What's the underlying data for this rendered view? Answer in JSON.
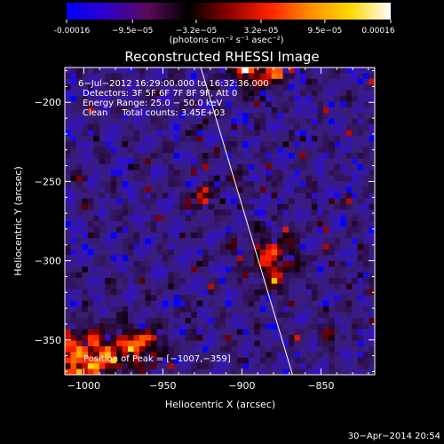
{
  "chart_data": {
    "type": "heatmap",
    "title": "Reconstructed RHESSI Image",
    "xlabel": "Heliocentric X (arcsec)",
    "ylabel": "Heliocentric Y (arcsec)",
    "xlim": [
      -1012,
      -816
    ],
    "ylim": [
      -372,
      -178
    ],
    "xticks": [
      -1000,
      -950,
      -900,
      -850
    ],
    "yticks": [
      -350,
      -300,
      -250,
      -200
    ],
    "xtick_labels": [
      "−1000",
      "−950",
      "−900",
      "−850"
    ],
    "ytick_labels": [
      "−350",
      "−300",
      "−250",
      "−200"
    ],
    "colorbar": {
      "min": -0.00016,
      "max": 0.00016,
      "ticks": [
        -0.00016,
        -9.5e-05,
        -3.2e-05,
        3.2e-05,
        9.5e-05,
        0.00016
      ],
      "tick_labels": [
        "-0.00016",
        "−9.5e−05",
        "−3.2e−05",
        "3.2e−05",
        "9.5e−05",
        "0.00016"
      ],
      "unit_label": "(photons cm⁻² s⁻¹ asec⁻²)",
      "colors": [
        "#0000ff",
        "#3000c8",
        "#5a0a5a",
        "#000000",
        "#8b0000",
        "#ff2000",
        "#ff8c00",
        "#ffd700",
        "#ffffff"
      ]
    },
    "info_lines": [
      "6−Jul−2012 16:29:00.000 to 16:32:36.000",
      "Detectors: 3F 5F 6F 7F 8F 9F, Att 0",
      "Energy Range: 25.0 − 50.0 keV",
      "Clean     Total counts: 3.45E+03"
    ],
    "peak_label": "Position of Peak = [−1007,−359]",
    "peak_position": [
      -1007,
      -359
    ],
    "limb_line": {
      "start": [
        -926,
        -178
      ],
      "end": [
        -868,
        -372
      ]
    },
    "hotspots": [
      {
        "x": -1000,
        "y": -362,
        "rx": 30,
        "ry": 18,
        "intensity": 1.0
      },
      {
        "x": -965,
        "y": -352,
        "rx": 14,
        "ry": 10,
        "intensity": 0.7
      },
      {
        "x": -890,
        "y": -180,
        "rx": 20,
        "ry": 10,
        "intensity": 0.95
      },
      {
        "x": -880,
        "y": -300,
        "rx": 14,
        "ry": 18,
        "intensity": 0.75
      },
      {
        "x": -926,
        "y": -262,
        "rx": 8,
        "ry": 6,
        "intensity": 0.8
      },
      {
        "x": -845,
        "y": -345,
        "rx": 6,
        "ry": 6,
        "intensity": 0.6
      },
      {
        "x": -905,
        "y": -250,
        "rx": 5,
        "ry": 5,
        "intensity": 0.5
      }
    ],
    "grid": false
  },
  "footer": {
    "timestamp": "30−Apr−2014 20:54"
  }
}
